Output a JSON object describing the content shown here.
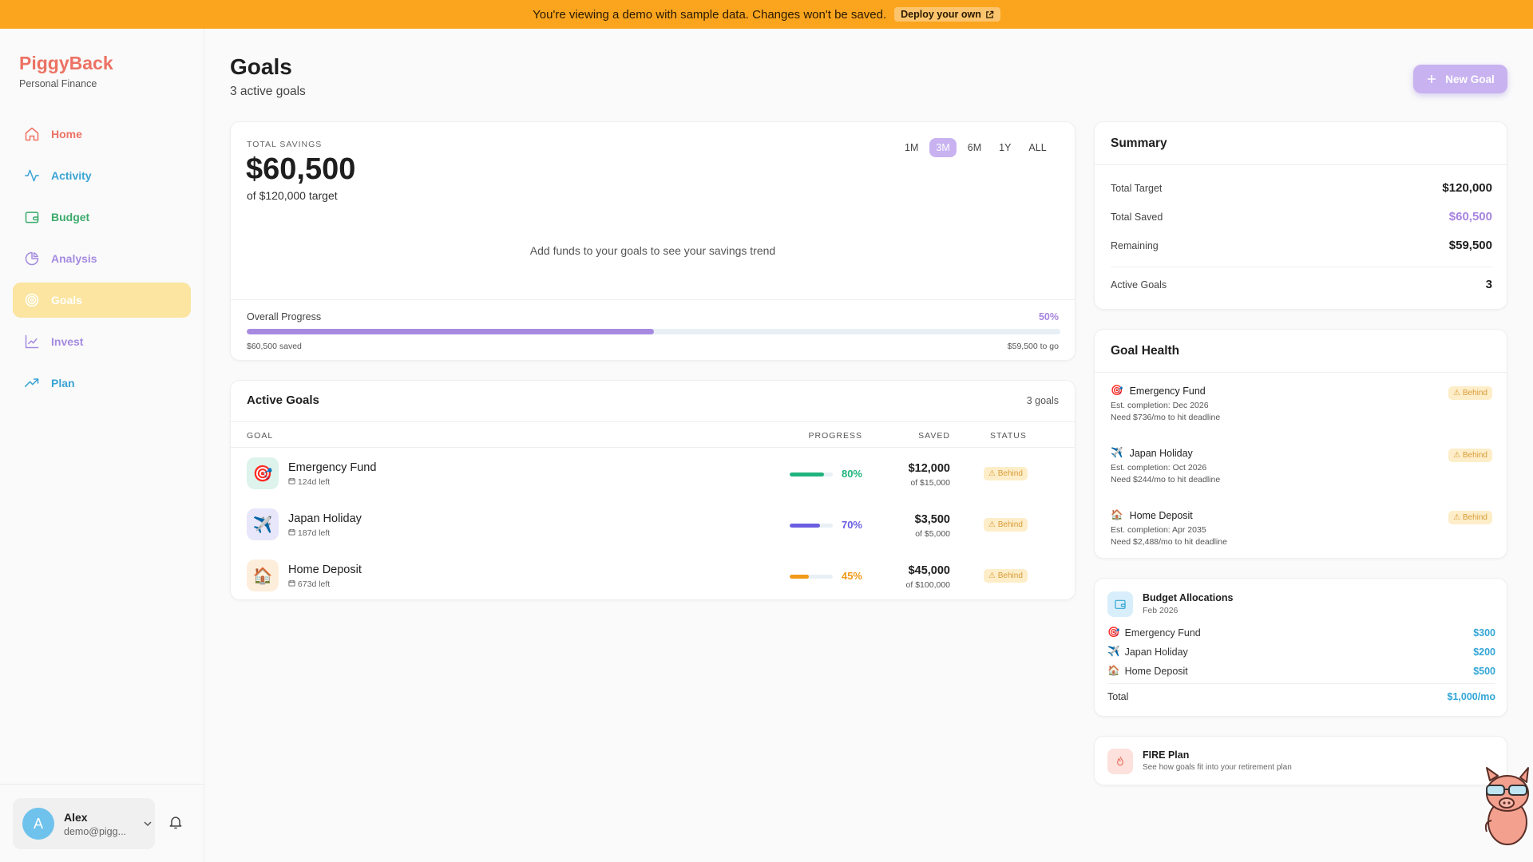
{
  "banner": {
    "text": "You're viewing a demo with sample data. Changes won't be saved.",
    "deploy_label": "Deploy your own"
  },
  "brand": {
    "name": "PiggyBack",
    "subtitle": "Personal Finance"
  },
  "nav": {
    "items": [
      {
        "label": "Home",
        "icon": "home-icon",
        "color": "#ec7263"
      },
      {
        "label": "Activity",
        "icon": "activity-icon",
        "color": "#3aa3d4"
      },
      {
        "label": "Budget",
        "icon": "wallet-icon",
        "color": "#3cab6b"
      },
      {
        "label": "Analysis",
        "icon": "pie-chart-icon",
        "color": "#a48be0"
      },
      {
        "label": "Goals",
        "icon": "target-icon",
        "color": "#ffffff",
        "active": true
      },
      {
        "label": "Invest",
        "icon": "line-chart-icon",
        "color": "#a48be0"
      },
      {
        "label": "Plan",
        "icon": "trending-up-icon",
        "color": "#3aa3d4"
      }
    ]
  },
  "user": {
    "initial": "A",
    "name": "Alex",
    "email": "demo@pigg..."
  },
  "page": {
    "title": "Goals",
    "subtitle": "3 active goals",
    "new_goal_label": "New Goal"
  },
  "savings": {
    "label": "TOTAL SAVINGS",
    "amount": "$60,500",
    "target": "of $120,000 target",
    "ranges": [
      "1M",
      "3M",
      "6M",
      "1Y",
      "ALL"
    ],
    "selected_range": "3M",
    "empty_message": "Add funds to your goals to see your savings trend",
    "progress_label": "Overall Progress",
    "progress_pct_text": "50%",
    "progress_fraction": 0.5,
    "saved_text": "$60,500 saved",
    "to_go_text": "$59,500 to go"
  },
  "active_goals": {
    "title": "Active Goals",
    "count_text": "3 goals",
    "headers": {
      "goal": "GOAL",
      "progress": "PROGRESS",
      "saved": "SAVED",
      "status": "STATUS"
    },
    "rows": [
      {
        "name": "Emergency Fund",
        "days_left": "124d left",
        "pct_text": "80%",
        "pct": 0.8,
        "saved": "$12,000",
        "of": "of $15,000",
        "status": "Behind",
        "emoji": "🎯",
        "color": "#1fb47d",
        "icon_bg": "#ddf3ec"
      },
      {
        "name": "Japan Holiday",
        "days_left": "187d left",
        "pct_text": "70%",
        "pct": 0.7,
        "saved": "$3,500",
        "of": "of $5,000",
        "status": "Behind",
        "emoji": "✈️",
        "color": "#6a5ee0",
        "icon_bg": "#e8e6fa"
      },
      {
        "name": "Home Deposit",
        "days_left": "673d left",
        "pct_text": "45%",
        "pct": 0.45,
        "saved": "$45,000",
        "of": "of $100,000",
        "status": "Behind",
        "emoji": "🏠",
        "color": "#f19a1a",
        "icon_bg": "#fdeedb"
      }
    ]
  },
  "summary": {
    "title": "Summary",
    "rows": [
      {
        "label": "Total Target",
        "value": "$120,000"
      },
      {
        "label": "Total Saved",
        "value": "$60,500",
        "color": "#a784e0"
      },
      {
        "label": "Remaining",
        "value": "$59,500"
      },
      {
        "label": "Active Goals",
        "value": "3"
      }
    ]
  },
  "health": {
    "title": "Goal Health",
    "items": [
      {
        "emoji": "🎯",
        "name": "Emergency Fund",
        "status": "Behind",
        "completion": "Est. completion: Dec 2026",
        "need": "Need $736/mo to hit deadline"
      },
      {
        "emoji": "✈️",
        "name": "Japan Holiday",
        "status": "Behind",
        "completion": "Est. completion: Oct 2026",
        "need": "Need $244/mo to hit deadline"
      },
      {
        "emoji": "🏠",
        "name": "Home Deposit",
        "status": "Behind",
        "completion": "Est. completion: Apr 2035",
        "need": "Need $2,488/mo to hit deadline"
      }
    ]
  },
  "allocations": {
    "title": "Budget Allocations",
    "date": "Feb 2026",
    "rows": [
      {
        "emoji": "🎯",
        "name": "Emergency Fund",
        "value": "$300"
      },
      {
        "emoji": "✈️",
        "name": "Japan Holiday",
        "value": "$200"
      },
      {
        "emoji": "🏠",
        "name": "Home Deposit",
        "value": "$500"
      }
    ],
    "total_label": "Total",
    "total_value": "$1,000/mo"
  },
  "fire": {
    "title": "FIRE Plan",
    "subtitle": "See how goals fit into your retirement plan"
  }
}
